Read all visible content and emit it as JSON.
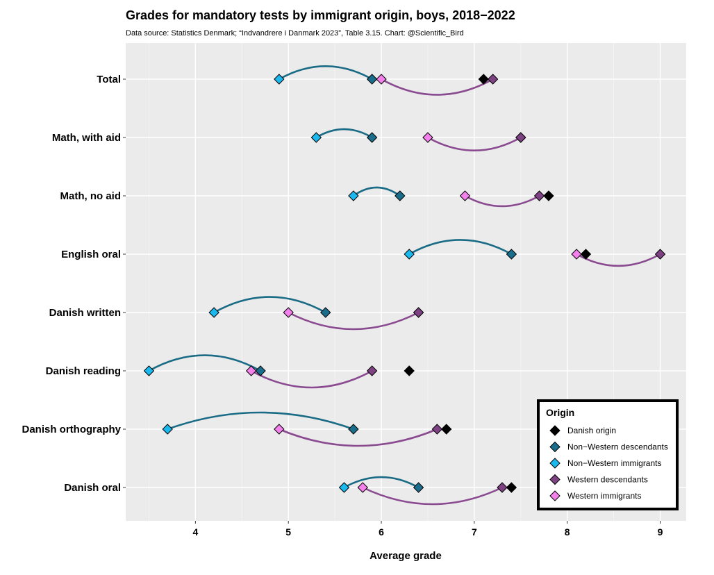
{
  "chart_data": {
    "type": "scatter",
    "title": "Grades for mandatory tests by immigrant origin, boys, 2018−2022",
    "subtitle": "Data source: Statistics Denmark; “Indvandrere i Danmark 2023”, Table 3.15. Chart: @Scientific_Bird",
    "xlabel": "Average grade",
    "ylabel": "",
    "xlim": [
      3.25,
      9.28
    ],
    "x_ticks": [
      4,
      5,
      6,
      7,
      8,
      9
    ],
    "x_tick_labels": [
      "4",
      "5",
      "6",
      "7",
      "8",
      "9"
    ],
    "categories": [
      "Total",
      "Math, with aid",
      "Math, no aid",
      "English oral",
      "Danish written",
      "Danish reading",
      "Danish orthography",
      "Danish oral"
    ],
    "series": [
      {
        "name": "Danish origin",
        "color": "#000000",
        "values": [
          7.1,
          7.5,
          7.8,
          8.2,
          6.4,
          6.3,
          6.7,
          7.4
        ]
      },
      {
        "name": "Non−Western descendants",
        "color": "#1a6e8c",
        "values": [
          5.9,
          5.9,
          6.2,
          7.4,
          5.4,
          4.7,
          5.7,
          6.4
        ]
      },
      {
        "name": "Non−Western immigrants",
        "color": "#1ab8ec",
        "values": [
          4.9,
          5.3,
          5.7,
          6.3,
          4.2,
          3.5,
          3.7,
          5.6
        ]
      },
      {
        "name": "Western descendants",
        "color": "#7e4282",
        "values": [
          7.2,
          7.5,
          7.7,
          9.0,
          6.4,
          5.9,
          6.6,
          7.3
        ]
      },
      {
        "name": "Western immigrants",
        "color": "#f480ec",
        "values": [
          6.0,
          6.5,
          6.9,
          8.1,
          5.0,
          4.6,
          4.9,
          5.8
        ]
      }
    ],
    "connectors": [
      {
        "from": "Non−Western immigrants",
        "to": "Non−Western descendants",
        "color": "#1a6b85",
        "curve": "up"
      },
      {
        "from": "Western immigrants",
        "to": "Western descendants",
        "color": "#8a4a90",
        "curve": "down"
      }
    ],
    "legend": {
      "title": "Origin",
      "position": "bottom-right"
    },
    "grid": true
  }
}
